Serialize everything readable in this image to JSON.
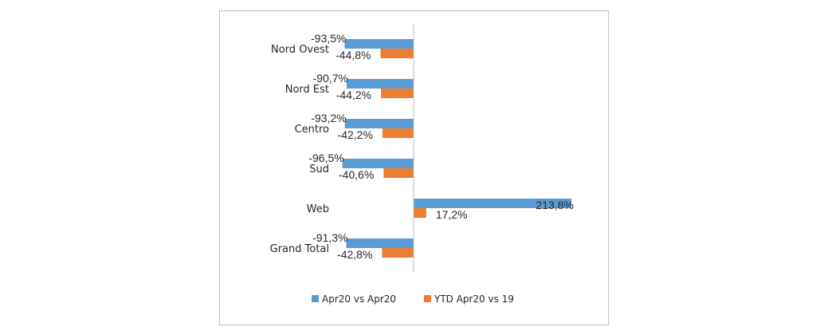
{
  "chart_data": {
    "type": "bar",
    "orientation": "horizontal",
    "categories": [
      "Nord Ovest",
      "Nord Est",
      "Centro",
      "Sud",
      "Web",
      "Grand Total"
    ],
    "series": [
      {
        "name": "Apr20 vs Apr20",
        "color": "#5b9bd5",
        "values": [
          -93.5,
          -90.7,
          -93.2,
          -96.5,
          213.8,
          -91.3
        ],
        "labels": [
          "-93,5%",
          "-90,7%",
          "-93,2%",
          "-96,5%",
          "213,8%",
          "-91,3%"
        ]
      },
      {
        "name": "YTD Apr20 vs 19",
        "color": "#ed7d31",
        "values": [
          -44.8,
          -44.2,
          -42.2,
          -40.6,
          17.2,
          -42.8
        ],
        "labels": [
          "-44,8%",
          "-44,2%",
          "-42,2%",
          "-40,6%",
          "17,2%",
          "-42,8%"
        ]
      }
    ],
    "xlim": [
      -100,
      240
    ],
    "title": "",
    "xlabel": "",
    "ylabel": "",
    "grid": false,
    "legend_position": "bottom"
  }
}
